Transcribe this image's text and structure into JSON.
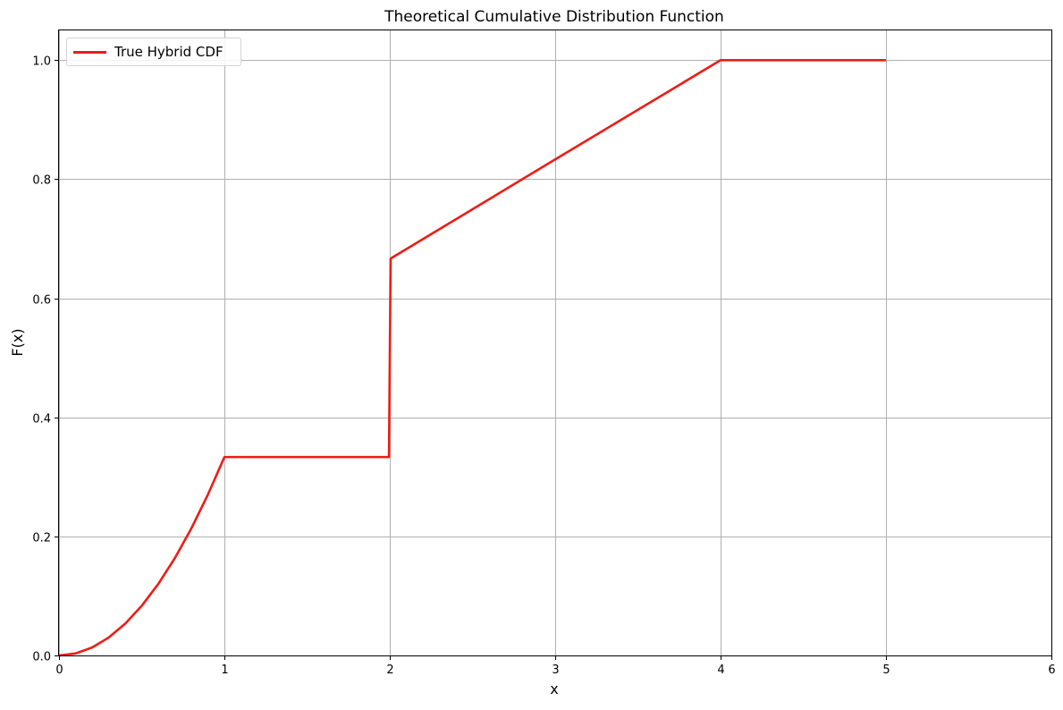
{
  "chart_data": {
    "type": "line",
    "title": "Theoretical Cumulative Distribution Function",
    "xlabel": "x",
    "ylabel": "F(x)",
    "xlim": [
      0,
      6
    ],
    "ylim": [
      0,
      1.05
    ],
    "xticks": [
      0,
      1,
      2,
      3,
      4,
      5,
      6
    ],
    "xtick_labels": [
      "0",
      "1",
      "2",
      "3",
      "4",
      "5",
      "6"
    ],
    "yticks": [
      0,
      0.2,
      0.4,
      0.6,
      0.8,
      1.0
    ],
    "ytick_labels": [
      "0.0",
      "0.2",
      "0.4",
      "0.6",
      "0.8",
      "1.0"
    ],
    "grid": true,
    "legend_position": "top-left",
    "series": [
      {
        "name": "True Hybrid CDF",
        "color": "#ee1c14",
        "x": [
          0,
          0.1,
          0.2,
          0.3,
          0.4,
          0.5,
          0.6,
          0.7,
          0.8,
          0.9,
          1.0,
          1.5,
          1.995,
          2.005,
          3.0,
          4.0,
          4.5,
          5.0
        ],
        "y": [
          0,
          0.0033,
          0.0133,
          0.03,
          0.0533,
          0.0833,
          0.12,
          0.1633,
          0.2133,
          0.27,
          0.3333,
          0.3333,
          0.3333,
          0.6667,
          0.8333,
          1.0,
          1.0,
          1.0
        ]
      }
    ]
  }
}
